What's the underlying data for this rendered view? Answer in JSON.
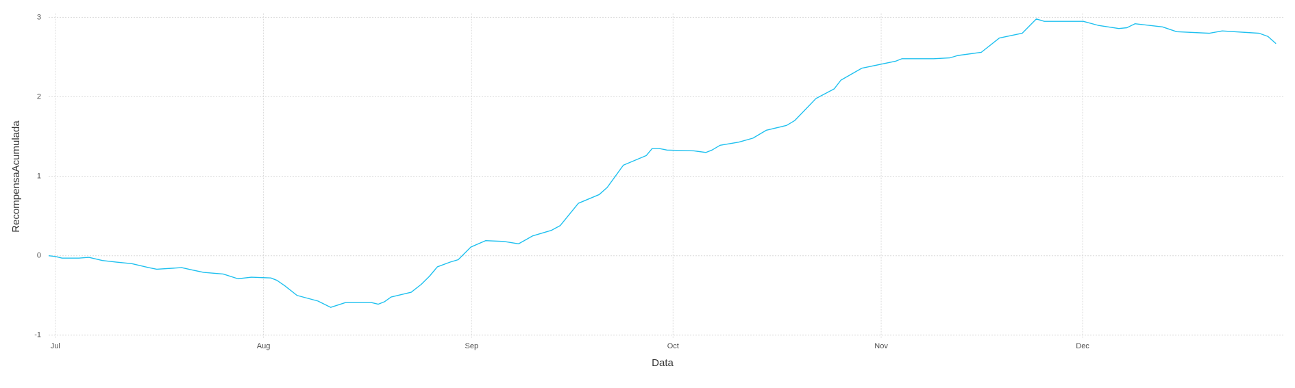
{
  "chart_data": {
    "type": "line",
    "x_label": "Data",
    "y_label": "RecompensaAcumulada",
    "x": [
      -1,
      0,
      1,
      3.5,
      5,
      7,
      9,
      11.4,
      13.9,
      15.1,
      18.8,
      20.4,
      22.1,
      25,
      27.2,
      29.2,
      32.1,
      33,
      34.2,
      36,
      39.1,
      41,
      43.2,
      47.1,
      48.1,
      49,
      50,
      53,
      54.5,
      55.7,
      56.9,
      58.8,
      60,
      61.9,
      64.1,
      66.8,
      69,
      71.1,
      73.9,
      75.2,
      77.9,
      81,
      82.2,
      84.6,
      88,
      88.9,
      89.9,
      91.1,
      95.1,
      96.9,
      97.8,
      99,
      101.8,
      103.9,
      105.9,
      108.9,
      110.1,
      111.7,
      113.3,
      116,
      117,
      120.1,
      125.2,
      126.1,
      130.8,
      133.2,
      134.4,
      137.9,
      140.6,
      144,
      146.1,
      147.3,
      150.4,
      153.1,
      155.3,
      158.4,
      159.6,
      160.8,
      164.9,
      167,
      171.9,
      173.8,
      179.3,
      180.6,
      181.8
    ],
    "series": [
      {
        "name": "RecompensaAcumulada",
        "color": "#1ec0ef",
        "values": [
          0.0,
          -0.01,
          -0.03,
          -0.03,
          -0.02,
          -0.06,
          -0.08,
          -0.1,
          -0.15,
          -0.17,
          -0.15,
          -0.18,
          -0.21,
          -0.23,
          -0.29,
          -0.27,
          -0.28,
          -0.31,
          -0.38,
          -0.5,
          -0.57,
          -0.65,
          -0.59,
          -0.59,
          -0.61,
          -0.58,
          -0.52,
          -0.46,
          -0.36,
          -0.26,
          -0.14,
          -0.08,
          -0.05,
          0.11,
          0.19,
          0.18,
          0.15,
          0.25,
          0.32,
          0.38,
          0.66,
          0.77,
          0.86,
          1.14,
          1.26,
          1.35,
          1.35,
          1.33,
          1.32,
          1.3,
          1.33,
          1.39,
          1.43,
          1.48,
          1.58,
          1.64,
          1.7,
          1.84,
          1.98,
          2.1,
          2.21,
          2.36,
          2.45,
          2.48,
          2.48,
          2.49,
          2.52,
          2.56,
          2.74,
          2.8,
          2.98,
          2.95,
          2.95,
          2.95,
          2.9,
          2.86,
          2.87,
          2.92,
          2.88,
          2.82,
          2.8,
          2.83,
          2.8,
          2.76,
          2.67
        ]
      }
    ],
    "xlim": [
      -1,
      183
    ],
    "xticks": [
      {
        "value": 0,
        "label": "Jul"
      },
      {
        "value": 31,
        "label": "Aug"
      },
      {
        "value": 62,
        "label": "Sep"
      },
      {
        "value": 92,
        "label": "Oct"
      },
      {
        "value": 123,
        "label": "Nov"
      },
      {
        "value": 153,
        "label": "Dec"
      }
    ],
    "ylim": [
      -1.05,
      3.05
    ],
    "yticks": [
      -1,
      0,
      1,
      2,
      3
    ],
    "grid": true
  }
}
